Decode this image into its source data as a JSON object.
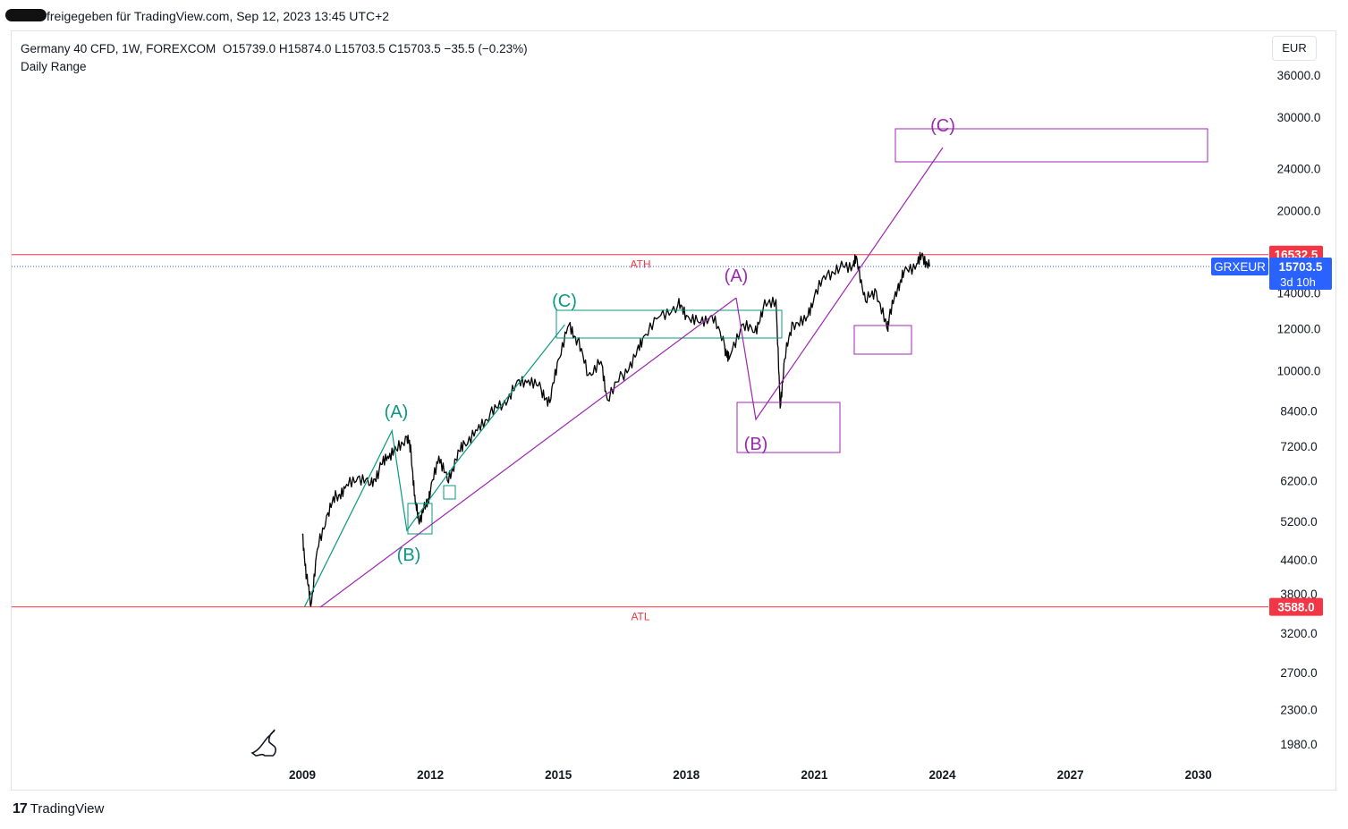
{
  "header": {
    "shared_text": "freigegeben für TradingView.com, Sep 12, 2023 13:45 UTC+2"
  },
  "legend": {
    "symbol": "Germany 40 CFD, 1W, FOREXCOM",
    "ohlc": "O15739.0  H15874.0  L15703.5  C15703.5  −35.5 (−0.23%)",
    "indicator": "Daily Range"
  },
  "currency_button": "EUR",
  "footer": {
    "logo_mark": "17",
    "brand": "TradingView"
  },
  "chart_data": {
    "type": "line",
    "scale": "log",
    "ylim": [
      1800,
      40000
    ],
    "xlim": [
      2006.2,
      2031.6
    ],
    "y_ticks": [
      1980,
      2300,
      2700,
      3200,
      3800,
      4400,
      5200,
      6200,
      7200,
      8400,
      10000,
      12000,
      14000,
      20000,
      24000,
      30000,
      36000
    ],
    "y_tick_labels": [
      "1980.0",
      "2300.0",
      "2700.0",
      "3200.0",
      "3800.0",
      "4400.0",
      "5200.0",
      "6200.0",
      "7200.0",
      "8400.0",
      "10000.0",
      "12000.0",
      "14000.0",
      "20000.0",
      "24000.0",
      "30000.0",
      "36000.0"
    ],
    "x_ticks": [
      2009,
      2012,
      2015,
      2018,
      2021,
      2024,
      2027,
      2030
    ],
    "x_tick_labels": [
      "2009",
      "2012",
      "2015",
      "2018",
      "2021",
      "2024",
      "2027",
      "2030"
    ],
    "series": [
      {
        "values": [
          [
            2009.0,
            4900
          ],
          [
            2009.1,
            4100
          ],
          [
            2009.2,
            3600
          ],
          [
            2009.35,
            4600
          ],
          [
            2009.6,
            5400
          ],
          [
            2009.8,
            5800
          ],
          [
            2010.0,
            6000
          ],
          [
            2010.3,
            6300
          ],
          [
            2010.6,
            6100
          ],
          [
            2010.8,
            6500
          ],
          [
            2011.0,
            6900
          ],
          [
            2011.2,
            7100
          ],
          [
            2011.45,
            7500
          ],
          [
            2011.55,
            7000
          ],
          [
            2011.65,
            5600
          ],
          [
            2011.75,
            5200
          ],
          [
            2011.9,
            5600
          ],
          [
            2012.0,
            5900
          ],
          [
            2012.2,
            6900
          ],
          [
            2012.4,
            6200
          ],
          [
            2012.6,
            6800
          ],
          [
            2012.8,
            7300
          ],
          [
            2013.1,
            7700
          ],
          [
            2013.4,
            8300
          ],
          [
            2013.7,
            8600
          ],
          [
            2014.0,
            9400
          ],
          [
            2014.3,
            9600
          ],
          [
            2014.6,
            9200
          ],
          [
            2014.8,
            8700
          ],
          [
            2015.0,
            10500
          ],
          [
            2015.25,
            12200
          ],
          [
            2015.45,
            11400
          ],
          [
            2015.7,
            9800
          ],
          [
            2016.0,
            10400
          ],
          [
            2016.15,
            8800
          ],
          [
            2016.5,
            9800
          ],
          [
            2016.8,
            10600
          ],
          [
            2017.0,
            11600
          ],
          [
            2017.4,
            12700
          ],
          [
            2017.8,
            13300
          ],
          [
            2018.0,
            12700
          ],
          [
            2018.3,
            12300
          ],
          [
            2018.6,
            12700
          ],
          [
            2018.9,
            11100
          ],
          [
            2019.0,
            10500
          ],
          [
            2019.3,
            12200
          ],
          [
            2019.6,
            11800
          ],
          [
            2019.8,
            13100
          ],
          [
            2020.1,
            13600
          ],
          [
            2020.2,
            8500
          ],
          [
            2020.3,
            10500
          ],
          [
            2020.5,
            12300
          ],
          [
            2020.8,
            12400
          ],
          [
            2021.0,
            13800
          ],
          [
            2021.3,
            15200
          ],
          [
            2021.6,
            15600
          ],
          [
            2021.9,
            15800
          ],
          [
            2022.0,
            16200
          ],
          [
            2022.2,
            13500
          ],
          [
            2022.45,
            14100
          ],
          [
            2022.7,
            12000
          ],
          [
            2022.75,
            12500
          ],
          [
            2022.95,
            14300
          ],
          [
            2023.1,
            15300
          ],
          [
            2023.4,
            15900
          ],
          [
            2023.55,
            16400
          ],
          [
            2023.7,
            15703.5
          ]
        ]
      }
    ],
    "horizontal_lines": [
      {
        "label": "ATH",
        "value": 16532.5,
        "value_label": "16532.5",
        "color": "#f23645"
      },
      {
        "label": "ATL",
        "value": 3588.0,
        "value_label": "3588.0",
        "color": "#f23645"
      }
    ],
    "last_price": {
      "symbol": "GRXEUR",
      "value": 15703.5,
      "value_label": "15703.5",
      "countdown": "3d 10h",
      "color": "#2962ff"
    },
    "annotations": {
      "green_labels": [
        "(A)",
        "(B)",
        "(C)"
      ],
      "purple_labels": [
        "(A)",
        "(B)",
        "(C)"
      ],
      "green_color": "#089981",
      "purple_color": "#9c27b0"
    }
  }
}
